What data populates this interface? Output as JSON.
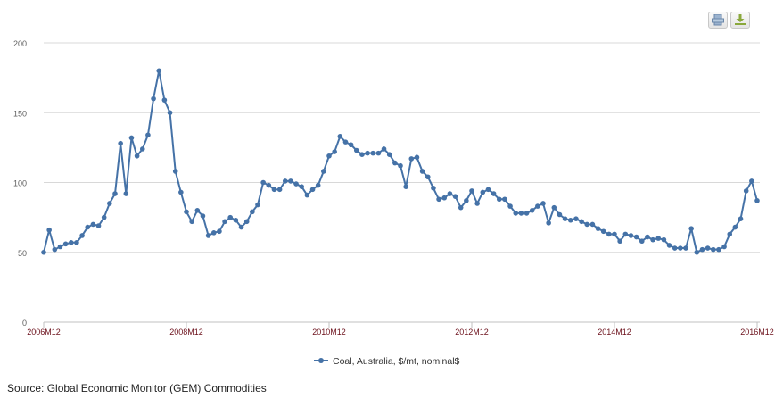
{
  "toolbar": {
    "print_icon": "printer-icon",
    "download_icon": "download-icon"
  },
  "source": "Source: Global Economic Monitor (GEM) Commodities",
  "colors": {
    "series": "#4572a7",
    "grid": "#d8d8d8",
    "xlabel": "#6b0f1a",
    "ylabel": "#606060"
  },
  "chart_data": {
    "type": "line",
    "title": "",
    "xlabel": "",
    "ylabel": "",
    "ylim": [
      0,
      200
    ],
    "yticks": [
      0,
      50,
      100,
      150,
      200
    ],
    "xtick_labels": [
      {
        "index": 0,
        "label": "2006M12"
      },
      {
        "index": 26,
        "label": "2008M12"
      },
      {
        "index": 52,
        "label": "2010M12"
      },
      {
        "index": 78,
        "label": "2012M12"
      },
      {
        "index": 104,
        "label": "2014M12"
      },
      {
        "index": 130,
        "label": "2016M12"
      }
    ],
    "grid": true,
    "legend": "bottom-center",
    "series": [
      {
        "name": "Coal, Australia, $/mt, nominal$",
        "values": [
          50,
          66,
          52,
          54,
          56,
          57,
          57,
          62,
          68,
          70,
          69,
          75,
          85,
          92,
          128,
          92,
          132,
          119,
          124,
          134,
          160,
          180,
          159,
          150,
          108,
          93,
          79,
          72,
          80,
          76,
          62,
          64,
          65,
          72,
          75,
          73,
          68,
          72,
          79,
          84,
          100,
          98,
          95,
          95,
          101,
          101,
          99,
          97,
          91,
          95,
          98,
          108,
          119,
          122,
          133,
          129,
          127,
          123,
          120,
          121,
          121,
          121,
          124,
          120,
          114,
          112,
          97,
          117,
          118,
          108,
          104,
          96,
          88,
          89,
          92,
          90,
          82,
          87,
          94,
          85,
          93,
          95,
          92,
          88,
          88,
          83,
          78,
          78,
          78,
          80,
          83,
          85,
          71,
          82,
          77,
          74,
          73,
          74,
          72,
          70,
          70,
          67,
          65,
          63,
          63,
          58,
          63,
          62,
          61,
          58,
          61,
          59,
          60,
          59,
          55,
          53,
          53,
          53,
          67,
          50,
          52,
          53,
          52,
          52,
          54,
          63,
          68,
          74,
          94,
          101,
          87
        ]
      }
    ]
  }
}
